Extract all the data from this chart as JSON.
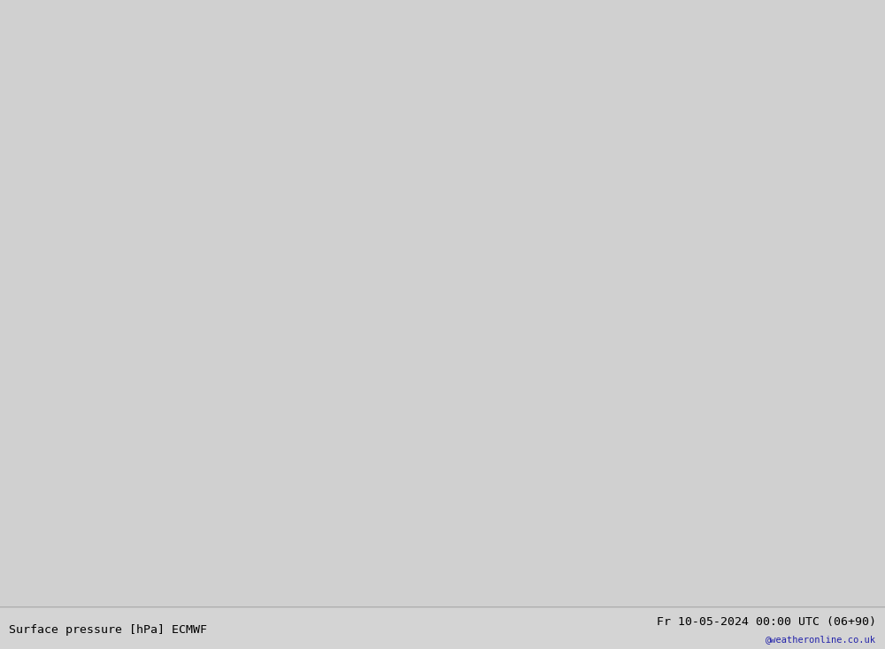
{
  "title_left": "Surface pressure [hPa] ECMWF",
  "title_right": "Fr 10-05-2024 00:00 UTC (06+90)",
  "watermark": "@weatheronline.co.uk",
  "ocean_color": "#d0d0d0",
  "land_color": "#e0e0e0",
  "australia_color": "#c8f090",
  "nz_color": "#c8f090",
  "island_color": "#c8f090",
  "figsize": [
    10.0,
    7.33
  ],
  "dpi": 100,
  "pressure_min": 988,
  "pressure_max": 1040,
  "pressure_step": 4,
  "black_isobar": 1013,
  "lon_min": 95,
  "lon_max": 185,
  "lat_min": -62,
  "lat_max": 8,
  "font_size_labels": 8,
  "font_size_title": 9.5,
  "font_size_watermark": 7.5,
  "contour_linewidth": 1.3,
  "black_linewidth": 1.8
}
